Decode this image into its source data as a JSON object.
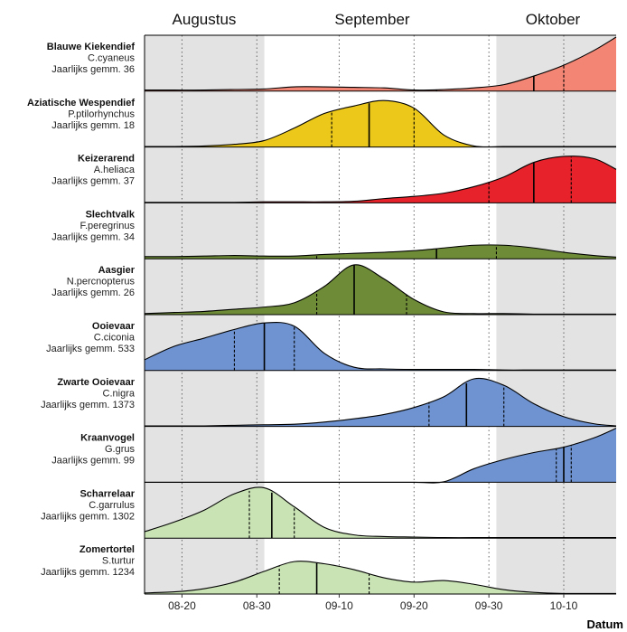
{
  "chart_data": {
    "type": "area",
    "title": "",
    "xlabel": "Datum",
    "ylabel": "",
    "x_range": [
      "2023-08-15",
      "2023-10-17"
    ],
    "months": [
      "Augustus",
      "September",
      "Oktober"
    ],
    "x_ticks": [
      "08-20",
      "08-30",
      "09-10",
      "09-20",
      "09-30",
      "10-10"
    ],
    "shaded_periods": [
      {
        "from": "2023-08-15",
        "to": "2023-08-31"
      },
      {
        "from": "2023-10-01",
        "to": "2023-10-17"
      }
    ],
    "grid": "dotted vertical lines at x ticks",
    "legend": "none",
    "density_grid": [
      "08-15",
      "08-19",
      "08-23",
      "08-27",
      "08-31",
      "09-04",
      "09-08",
      "09-12",
      "09-16",
      "09-20",
      "09-24",
      "09-28",
      "10-02",
      "10-06",
      "10-10",
      "10-14",
      "10-17"
    ],
    "series": [
      {
        "name": "Blauwe Kiekendief",
        "latin": "C.cyaneus",
        "annual": "Jaarlijks gemm. 36",
        "color": "#f28574",
        "density": [
          0.02,
          0.02,
          0.02,
          0.03,
          0.04,
          0.08,
          0.08,
          0.07,
          0.06,
          0.02,
          0.03,
          0.06,
          0.12,
          0.28,
          0.48,
          0.75,
          1.0
        ],
        "quantiles": [
          "2023-09-23",
          "2023-10-06",
          "2023-10-10"
        ]
      },
      {
        "name": "Aziatische Wespendief",
        "latin": "P.ptilorhynchus",
        "annual": "Jaarlijks gemm. 18",
        "color": "#ecc81a",
        "density": [
          0.01,
          0.01,
          0.02,
          0.05,
          0.12,
          0.35,
          0.62,
          0.76,
          0.86,
          0.72,
          0.22,
          0.02,
          0.01,
          0.01,
          0.01,
          0.01,
          0.01
        ],
        "quantiles": [
          "2023-09-09",
          "2023-09-14",
          "2023-09-20"
        ]
      },
      {
        "name": "Keizerarend",
        "latin": "A.heliaca",
        "annual": "Jaarlijks gemm. 37",
        "color": "#e8222a",
        "density": [
          0.01,
          0.01,
          0.01,
          0.01,
          0.02,
          0.02,
          0.02,
          0.03,
          0.08,
          0.12,
          0.18,
          0.3,
          0.48,
          0.75,
          0.86,
          0.82,
          0.62
        ],
        "quantiles": [
          "2023-09-30",
          "2023-10-06",
          "2023-10-11"
        ]
      },
      {
        "name": "Slechtvalk",
        "latin": "F.peregrinus",
        "annual": "Jaarlijks gemm. 34",
        "color": "#6e8c37",
        "density": [
          0.04,
          0.04,
          0.05,
          0.06,
          0.05,
          0.05,
          0.08,
          0.1,
          0.12,
          0.15,
          0.2,
          0.25,
          0.25,
          0.2,
          0.12,
          0.06,
          0.03
        ],
        "quantiles": [
          "2023-09-07",
          "2023-09-23",
          "2023-10-01"
        ]
      },
      {
        "name": "Aasgier",
        "latin": "N.percnopterus",
        "annual": "Jaarlijks gemm. 26",
        "color": "#6e8c37",
        "density": [
          0.02,
          0.04,
          0.06,
          0.1,
          0.14,
          0.22,
          0.52,
          0.92,
          0.66,
          0.28,
          0.05,
          0.02,
          0.02,
          0.01,
          0.01,
          0.01,
          0.01
        ],
        "quantiles": [
          "2023-09-07",
          "2023-09-12",
          "2023-09-19"
        ]
      },
      {
        "name": "Ooievaar",
        "latin": "C.ciconia",
        "annual": "Jaarlijks gemm. 533",
        "color": "#6e93d0",
        "density": [
          0.2,
          0.45,
          0.6,
          0.76,
          0.88,
          0.82,
          0.32,
          0.06,
          0.03,
          0.02,
          0.02,
          0.02,
          0.01,
          0.01,
          0.01,
          0.01,
          0.01
        ],
        "quantiles": [
          "2023-08-27",
          "2023-08-31",
          "2023-09-04"
        ]
      },
      {
        "name": "Zwarte Ooievaar",
        "latin": "C.nigra",
        "annual": "Jaarlijks gemm. 1373",
        "color": "#6e93d0",
        "density": [
          0.01,
          0.01,
          0.01,
          0.02,
          0.03,
          0.04,
          0.08,
          0.14,
          0.22,
          0.35,
          0.55,
          0.88,
          0.76,
          0.42,
          0.18,
          0.05,
          0.01
        ],
        "quantiles": [
          "2023-09-22",
          "2023-09-27",
          "2023-10-02"
        ]
      },
      {
        "name": "Kraanvogel",
        "latin": "G.grus",
        "annual": "Jaarlijks gemm. 99",
        "color": "#6e93d0",
        "density": [
          0.0,
          0.0,
          0.0,
          0.0,
          0.0,
          0.0,
          0.0,
          0.0,
          0.0,
          0.0,
          0.01,
          0.25,
          0.42,
          0.55,
          0.65,
          0.82,
          1.0
        ],
        "quantiles": [
          "2023-10-09",
          "2023-10-10",
          "2023-10-11"
        ]
      },
      {
        "name": "Scharrelaar",
        "latin": "C.garrulus",
        "annual": "Jaarlijks gemm. 1302",
        "color": "#c9e3b4",
        "density": [
          0.12,
          0.3,
          0.52,
          0.82,
          0.93,
          0.58,
          0.2,
          0.06,
          0.03,
          0.02,
          0.01,
          0.01,
          0.01,
          0.01,
          0.01,
          0.01,
          0.01
        ],
        "quantiles": [
          "2023-08-29",
          "2023-09-01",
          "2023-09-04"
        ]
      },
      {
        "name": "Zomertortel",
        "latin": "S.turtur",
        "annual": "Jaarlijks gemm. 1234",
        "color": "#c9e3b4",
        "density": [
          0.02,
          0.04,
          0.1,
          0.22,
          0.42,
          0.6,
          0.56,
          0.45,
          0.3,
          0.22,
          0.25,
          0.18,
          0.08,
          0.03,
          0.01,
          0.01,
          0.01
        ],
        "quantiles": [
          "2023-09-02",
          "2023-09-07",
          "2023-09-14"
        ]
      }
    ]
  }
}
